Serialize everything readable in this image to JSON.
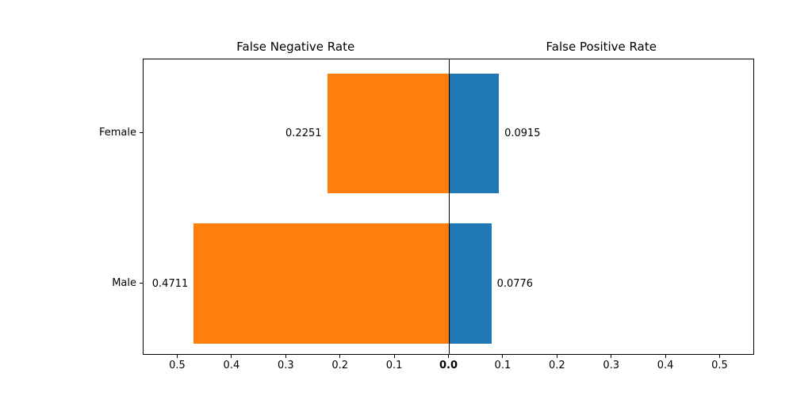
{
  "figure": {
    "background": "#ffffff",
    "frame_color": "#000000"
  },
  "chart_data": {
    "type": "bar",
    "orientation": "diverging-horizontal",
    "title_left": "False Negative Rate",
    "title_right": "False Positive Rate",
    "categories": [
      "Female",
      "Male"
    ],
    "series": [
      {
        "name": "False Negative Rate",
        "side": "left",
        "color": "#ff7f0e",
        "values": [
          0.2251,
          0.4711
        ],
        "value_labels": [
          "0.2251",
          "0.4711"
        ]
      },
      {
        "name": "False Positive Rate",
        "side": "right",
        "color": "#1f77b4",
        "values": [
          0.0915,
          0.0776
        ],
        "value_labels": [
          "0.0915",
          "0.0776"
        ]
      }
    ],
    "x_tick_labels_left": [
      "0.5",
      "0.4",
      "0.3",
      "0.2",
      "0.1"
    ],
    "x_tick_center_label": "0.0",
    "x_tick_labels_right": [
      "0.1",
      "0.2",
      "0.3",
      "0.4",
      "0.5"
    ],
    "xlim_half": 0.5636,
    "grid": false,
    "legend": null
  }
}
